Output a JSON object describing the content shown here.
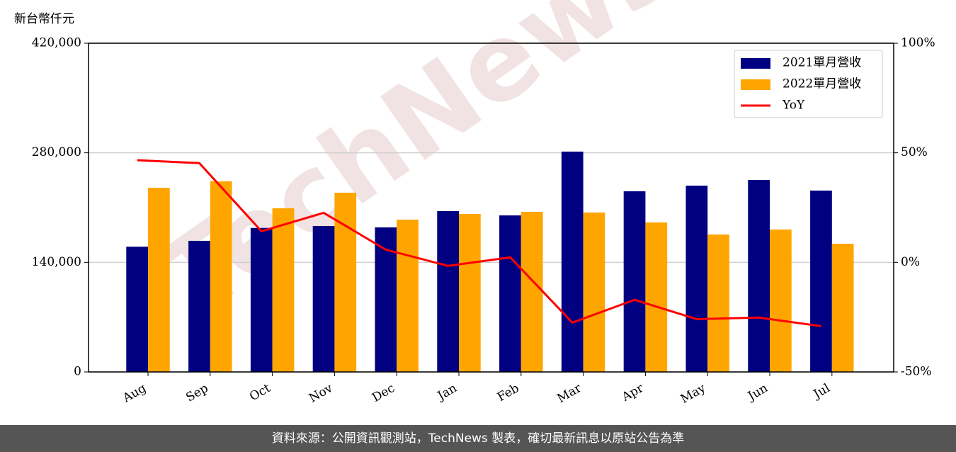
{
  "chart_data": {
    "type": "bar_line",
    "y_label": "新台幣仟元",
    "categories": [
      "Aug",
      "Sep",
      "Oct",
      "Nov",
      "Dec",
      "Jan",
      "Feb",
      "Mar",
      "Apr",
      "May",
      "Jun",
      "Jul"
    ],
    "series": [
      {
        "name": "2021單月營收",
        "type": "bar",
        "color": "#000080",
        "values": [
          160000,
          167500,
          184000,
          186500,
          184700,
          205500,
          200000,
          281500,
          230800,
          238000,
          245300,
          231700
        ]
      },
      {
        "name": "2022單月營收",
        "type": "bar",
        "color": "#ffa500",
        "values": [
          235300,
          243500,
          209100,
          229000,
          194600,
          201900,
          204600,
          203700,
          191000,
          175600,
          182000,
          163800
        ]
      },
      {
        "name": "YoY",
        "type": "line",
        "axis": "y2",
        "color": "#ff0000",
        "values": [
          46.6,
          45.3,
          14.2,
          22.6,
          5.8,
          -1.6,
          2.3,
          -27.5,
          -17.1,
          -25.9,
          -25.2,
          -29.1
        ]
      }
    ],
    "ylim": [
      0,
      420000
    ],
    "yticks": [
      0,
      {
        "value": 140000,
        "label": "140,000"
      },
      {
        "value": 280000,
        "label": "280,000"
      },
      {
        "value": 420000,
        "label": "420,000"
      }
    ],
    "y2lim": [
      -50,
      100
    ],
    "y2ticks": [
      {
        "value": -50,
        "label": "-50%"
      },
      {
        "value": 0,
        "label": "0%"
      },
      {
        "value": 50,
        "label": "50%"
      },
      {
        "value": 100,
        "label": "100%"
      }
    ],
    "grid": true,
    "legend": "upper right",
    "watermark": "TechNews",
    "footer": "資料來源：公開資訊觀測站，TechNews 製表，確切最新訊息以原站公告為準"
  }
}
